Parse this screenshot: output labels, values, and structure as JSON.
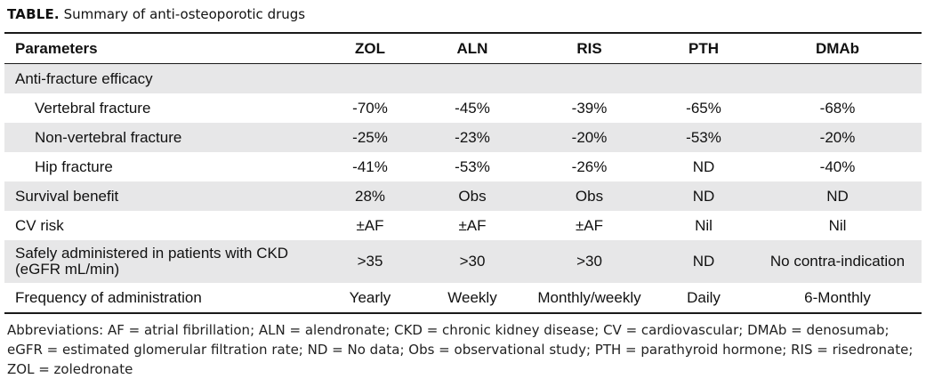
{
  "caption": {
    "lead": "TABLE.",
    "text": "Summary of anti-osteoporotic drugs"
  },
  "table": {
    "headers": [
      "Parameters",
      "ZOL",
      "ALN",
      "RIS",
      "PTH",
      "DMAb"
    ],
    "rows": [
      {
        "label": "Anti-fracture efficacy",
        "cells": [
          "",
          "",
          "",
          "",
          ""
        ]
      },
      {
        "label": "Vertebral fracture",
        "cells": [
          "-70%",
          "-45%",
          "-39%",
          "-65%",
          "-68%"
        ]
      },
      {
        "label": "Non-vertebral fracture",
        "cells": [
          "-25%",
          "-23%",
          "-20%",
          "-53%",
          "-20%"
        ]
      },
      {
        "label": "Hip fracture",
        "cells": [
          "-41%",
          "-53%",
          "-26%",
          "ND",
          "-40%"
        ]
      },
      {
        "label": "Survival benefit",
        "cells": [
          "28%",
          "Obs",
          "Obs",
          "ND",
          "ND"
        ]
      },
      {
        "label": "CV risk",
        "cells": [
          "±AF",
          "±AF",
          "±AF",
          "Nil",
          "Nil"
        ]
      },
      {
        "label": "Safely administered in patients with CKD (eGFR mL/min)",
        "cells": [
          ">35",
          ">30",
          ">30",
          "ND",
          "No contra-indication"
        ]
      },
      {
        "label": "Frequency of administration",
        "cells": [
          "Yearly",
          "Weekly",
          "Monthly/weekly",
          "Daily",
          "6-Monthly"
        ]
      }
    ]
  },
  "footnote": "Abbreviations: AF = atrial fibrillation; ALN = alendronate; CKD = chronic kidney disease; CV = cardiovascular; DMAb = denosumab; eGFR = estimated glomerular filtration rate; ND = No data; Obs = observational study; PTH = parathyroid hormone; RIS = risedronate; ZOL = zoledronate",
  "colors": {
    "shade": "#e7e7e8",
    "rule": "#1a1a1a"
  }
}
